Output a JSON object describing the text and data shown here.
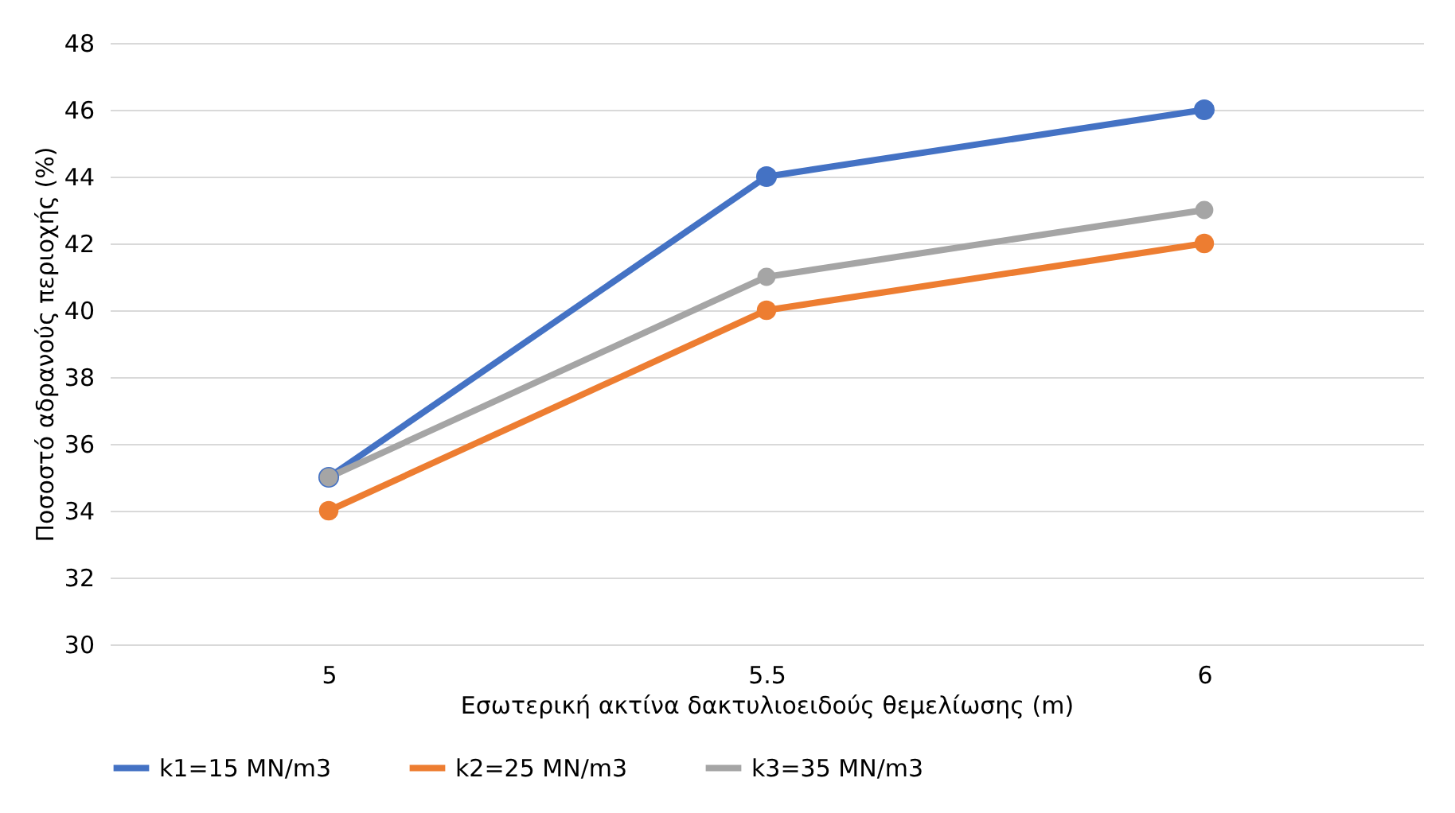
{
  "chart_data": {
    "type": "line",
    "xlabel": "Εσωτερική ακτίνα δακτυλιοειδούς θεμελίωσης (m)",
    "ylabel": "Ποσοστό αδρανούς περιοχής (%)",
    "categories": [
      "5",
      "5.5",
      "6"
    ],
    "series": [
      {
        "name": "k1=15 MN/m3",
        "color": "#4472c4",
        "values": [
          35,
          44,
          46
        ]
      },
      {
        "name": "k2=25 MN/m3",
        "color": "#ed7d31",
        "values": [
          34,
          40,
          42
        ]
      },
      {
        "name": "k3=35 MN/m3",
        "color": "#a5a5a5",
        "values": [
          35,
          41,
          43
        ]
      }
    ],
    "ylim": [
      30,
      48
    ],
    "yticks": [
      30,
      32,
      34,
      36,
      38,
      40,
      42,
      44,
      46,
      48
    ],
    "grid": "y",
    "legend": "bottom",
    "marker": "circle",
    "line_style": "solid"
  }
}
